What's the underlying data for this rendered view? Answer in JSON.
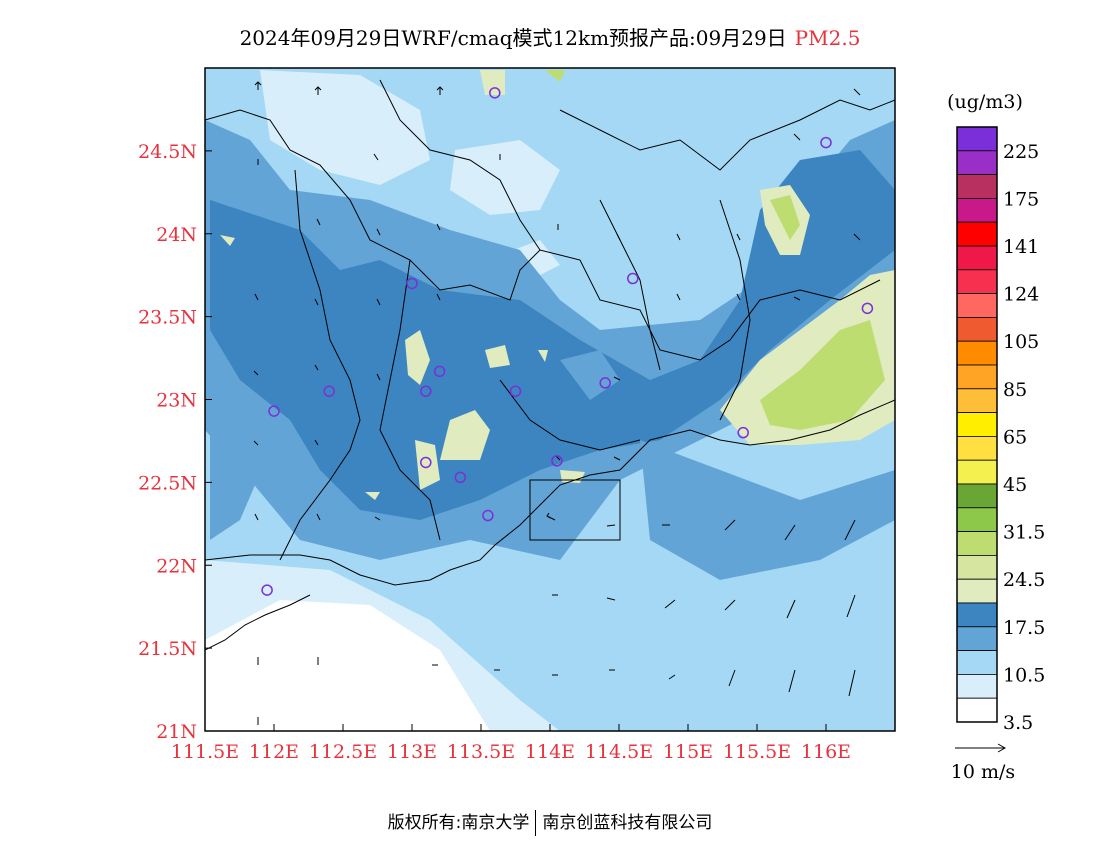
{
  "title": {
    "main": "2024年09月29日WRF/cmaq模式12km预报产品:09月29日",
    "pollutant": "PM2.5"
  },
  "axes": {
    "lat_labels": [
      "24.5N",
      "24N",
      "23.5N",
      "23N",
      "22.5N",
      "22N",
      "21.5N",
      "21N"
    ],
    "lat_values": [
      24.5,
      24,
      23.5,
      23,
      22.5,
      22,
      21.5,
      21
    ],
    "lon_labels": [
      "111.5E",
      "112E",
      "112.5E",
      "113E",
      "113.5E",
      "114E",
      "114.5E",
      "115E",
      "115.5E",
      "116E"
    ],
    "lon_values": [
      111.5,
      112,
      112.5,
      113,
      113.5,
      114,
      114.5,
      115,
      115.5,
      116
    ],
    "lon_range": [
      111.5,
      116.5
    ],
    "lat_range": [
      21,
      25
    ]
  },
  "colorbar": {
    "unit": "(ug/m3)",
    "labels": [
      "225",
      "175",
      "141",
      "124",
      "105",
      "85",
      "65",
      "45",
      "31.5",
      "24.5",
      "17.5",
      "10.5",
      "3.5"
    ],
    "colors_top_to_bottom": [
      "#7b2fd8",
      "#9a2fc8",
      "#b83060",
      "#c8188a",
      "#ff0000",
      "#f01848",
      "#f83050",
      "#ff6860",
      "#f05a30",
      "#ff8c00",
      "#ffa424",
      "#ffbe38",
      "#ffee00",
      "#ffe040",
      "#f4f050",
      "#6aa636",
      "#8ec84a",
      "#bedd70",
      "#d6e6a0",
      "#e0ebc0",
      "#3d85c0",
      "#62a4d6",
      "#a4d8f4",
      "#d8eefa",
      "#ffffff"
    ]
  },
  "wind_scale": {
    "label": "10 m/s"
  },
  "footer": {
    "left": "版权所有:南京大学",
    "right": "南京创蓝科技有限公司"
  },
  "stations": [
    {
      "lon": 113.6,
      "lat": 24.85
    },
    {
      "lon": 116.0,
      "lat": 24.55
    },
    {
      "lon": 113.0,
      "lat": 23.7
    },
    {
      "lon": 114.6,
      "lat": 23.73
    },
    {
      "lon": 116.3,
      "lat": 23.55
    },
    {
      "lon": 112.4,
      "lat": 23.05
    },
    {
      "lon": 113.1,
      "lat": 23.05
    },
    {
      "lon": 113.2,
      "lat": 23.17
    },
    {
      "lon": 113.75,
      "lat": 23.05
    },
    {
      "lon": 114.4,
      "lat": 23.1
    },
    {
      "lon": 112.0,
      "lat": 22.93
    },
    {
      "lon": 115.4,
      "lat": 22.8
    },
    {
      "lon": 113.1,
      "lat": 22.62
    },
    {
      "lon": 113.35,
      "lat": 22.53
    },
    {
      "lon": 114.05,
      "lat": 22.63
    },
    {
      "lon": 113.55,
      "lat": 22.3
    },
    {
      "lon": 111.95,
      "lat": 21.85
    }
  ]
}
